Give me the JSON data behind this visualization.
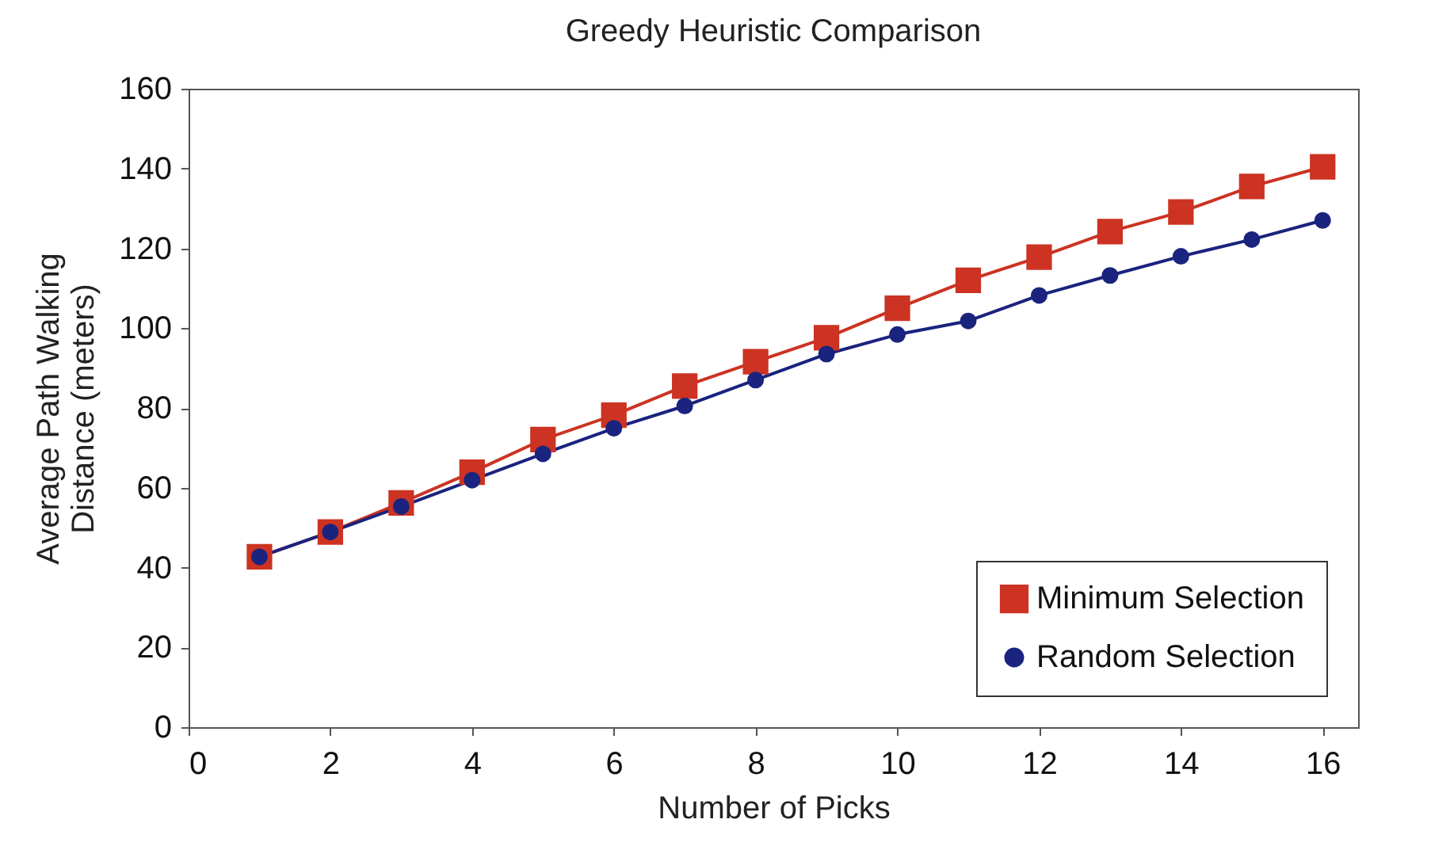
{
  "chart_data": {
    "type": "line",
    "title": "Greedy Heuristic Comparison",
    "xlabel": "Number of Picks",
    "ylabel": "Average Path Walking Distance (meters)",
    "x": [
      1,
      2,
      3,
      4,
      5,
      6,
      7,
      8,
      9,
      10,
      11,
      12,
      13,
      14,
      15,
      16
    ],
    "series": [
      {
        "name": "Minimum Selection",
        "color": "#cc3322",
        "marker": "square",
        "values": [
          42.7,
          48.9,
          56.2,
          63.9,
          72.1,
          78.2,
          85.5,
          91.6,
          97.6,
          105.0,
          112.0,
          117.8,
          124.2,
          129.1,
          135.5,
          140.4
        ]
      },
      {
        "name": "Random Selection",
        "color": "#1a237e",
        "marker": "circle",
        "values": [
          42.7,
          48.9,
          55.3,
          61.9,
          68.5,
          74.9,
          80.5,
          87.0,
          93.5,
          98.4,
          101.8,
          108.2,
          113.2,
          118.0,
          122.2,
          127.0
        ]
      }
    ],
    "xlim": [
      0,
      16.5
    ],
    "xticks": [
      0,
      2,
      4,
      6,
      8,
      10,
      12,
      14,
      16
    ],
    "ylim": [
      0,
      160
    ],
    "yticks": [
      0,
      20,
      40,
      60,
      80,
      100,
      120,
      140,
      160
    ],
    "grid": false,
    "legend": "bottom right",
    "line_style": "solid"
  }
}
